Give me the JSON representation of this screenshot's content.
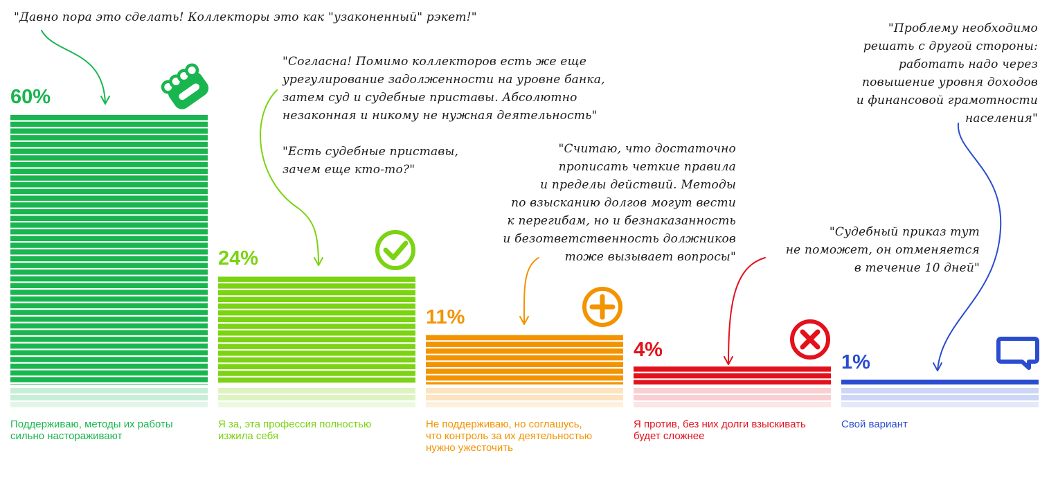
{
  "chart_data": {
    "type": "bar",
    "categories": [
      "Поддерживаю, методы их работы\nсильно настораживают",
      "Я за, эта профессия полностью\nизжила себя",
      "Не поддерживаю, но соглашусь,\nчто контроль за их деятельностью\nнужно ужесточить",
      "Я против, без них долги взыскивать\nбудет сложнее",
      "Свой вариант"
    ],
    "values": [
      60,
      24,
      11,
      4,
      1
    ],
    "value_labels": [
      "60%",
      "24%",
      "11%",
      "4%",
      "1%"
    ],
    "colors": [
      "#19b64f",
      "#7bd312",
      "#f39300",
      "#e3111c",
      "#2a4ccf"
    ],
    "light_colors": [
      "#c9eed7",
      "#ddf4c2",
      "#fde3c0",
      "#f9cfd2",
      "#cdd6f5"
    ],
    "icons": [
      "brass-knuckles-icon",
      "check-circle-icon",
      "plus-circle-icon",
      "cross-circle-icon",
      "speech-bubble-icon"
    ],
    "ylim": [
      0,
      60
    ],
    "grid": false,
    "legend": "none"
  },
  "quotes": [
    "\"Давно пора это сделать! Коллекторы это как \"узаконенный\" рэкет!\"",
    "\"Согласна! Помимо коллекторов есть же еще\nурегулирование задолженности на уровне банка,\nзатем суд и судебные приставы. Абсолютно\nнезаконная и никому не нужная деятельность\"",
    "\"Есть судебные приставы,\nзачем еще кто-то?\"",
    "\"Считаю, что достаточно\nпрописать четкие правила\nи пределы действий. Методы\nпо взысканию долгов могут вести\nк перегибам, но и безнаказанность\nи безответственность должников\nтоже вызывает вопросы\"",
    "\"Судебный приказ тут\nне поможет, он отменяется\nв течение 10 дней\"",
    "\"Проблему необходимо\nрешать с другой стороны:\nработать надо через\nповышение уровня доходов\nи финансовой грамотности\nнаселения\""
  ]
}
